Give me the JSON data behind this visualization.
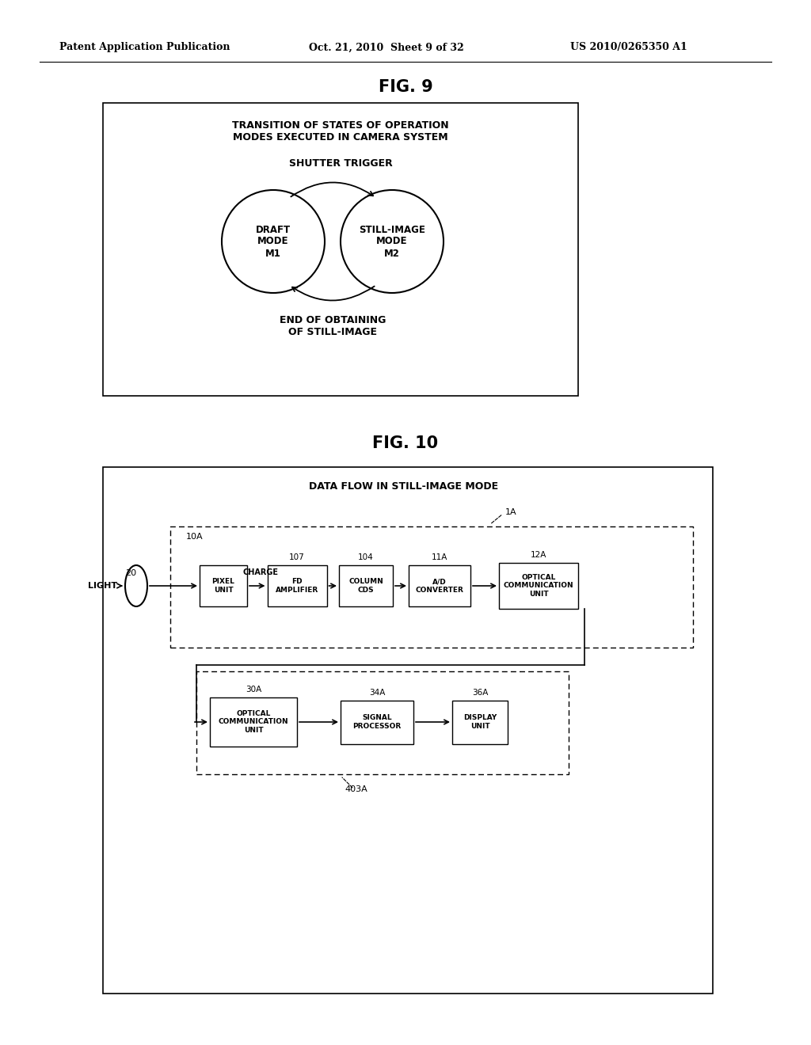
{
  "bg_color": "#ffffff",
  "header_left": "Patent Application Publication",
  "header_mid": "Oct. 21, 2010  Sheet 9 of 32",
  "header_right": "US 2010/0265350 A1",
  "fig9_title": "FIG. 9",
  "fig9_box_title": "TRANSITION OF STATES OF OPERATION\nMODES EXECUTED IN CAMERA SYSTEM",
  "fig9_shutter_label": "SHUTTER TRIGGER",
  "fig9_end_label": "END OF OBTAINING\nOF STILL-IMAGE",
  "fig9_circle1_label": "DRAFT\nMODE\nM1",
  "fig9_circle2_label": "STILL-IMAGE\nMODE\nM2",
  "fig10_title": "FIG. 10",
  "fig10_box_title": "DATA FLOW IN STILL-IMAGE MODE",
  "fig10_label_1A": "1A",
  "fig10_label_20": "20",
  "fig10_label_10A": "10A",
  "fig10_label_107": "107",
  "fig10_label_104": "104",
  "fig10_label_11A": "11A",
  "fig10_label_12A": "12A",
  "fig10_label_30A": "30A",
  "fig10_label_34A": "34A",
  "fig10_label_36A": "36A",
  "fig10_label_403A": "403A",
  "fig10_light": "LIGHT",
  "fig10_charge": "CHARGE"
}
